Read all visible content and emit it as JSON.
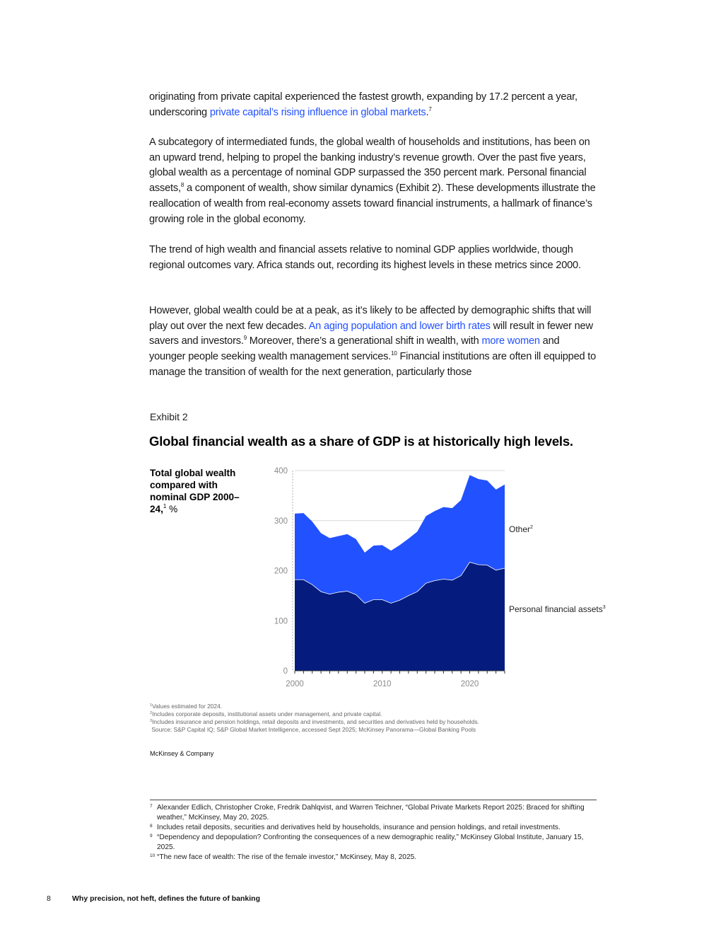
{
  "body": {
    "p1": {
      "t1": "originating from private capital experienced the fastest growth, expanding by 17.2 percent a year, underscoring ",
      "link": "private capital’s rising influence in global markets",
      "t2": ".",
      "fn": "7"
    },
    "p2": {
      "t1": "A subcategory of intermediated funds, the global wealth of households and institutions, has been on an upward trend, helping to propel the banking industry’s revenue growth. Over the past five years, global wealth as a percentage of nominal GDP surpassed the 350 percent mark. Personal financial assets,",
      "fn": "8",
      "t2": " a component of wealth, show similar dynamics (Exhibit 2). These developments illustrate the reallocation of wealth from real-economy assets toward financial instruments, a hallmark of finance’s growing role in the global economy."
    },
    "p3": "The trend of high wealth and financial assets relative to nominal GDP applies worldwide, though regional outcomes vary. Africa stands out, recording its highest levels in these metrics since 2000.",
    "p4": {
      "t1": "However, global wealth could be at a peak, as it’s likely to be affected by demographic shifts that will play out over the next few decades. ",
      "link1": "An aging population and lower birth rates",
      "t2": " will result in fewer new savers and investors.",
      "fn1": "9",
      "t3": " Moreover, there’s a generational shift in wealth, with ",
      "link2": "more women",
      "t4": " and younger people seeking wealth management services.",
      "fn2": "10",
      "t5": " Financial institutions are often ill equipped to manage the transition of wealth for the next generation, particularly those"
    }
  },
  "exhibit": {
    "label": "Exhibit 2",
    "title": "Global financial wealth as a share of GDP is at historically high levels.",
    "side_label_bold": "Total global wealth compared with nominal GDP 2000–24,",
    "side_label_fn": "1",
    "side_label_unit": " %"
  },
  "chart_data": {
    "type": "area",
    "stacked": true,
    "x": [
      2000,
      2001,
      2002,
      2003,
      2004,
      2005,
      2006,
      2007,
      2008,
      2009,
      2010,
      2011,
      2012,
      2013,
      2014,
      2015,
      2016,
      2017,
      2018,
      2019,
      2020,
      2021,
      2022,
      2023,
      2024
    ],
    "series": [
      {
        "name": "Personal financial assets",
        "fn": "3",
        "color": "#051c7e",
        "values": [
          182,
          182,
          172,
          158,
          153,
          157,
          159,
          152,
          135,
          142,
          142,
          135,
          141,
          150,
          158,
          175,
          180,
          183,
          181,
          190,
          217,
          212,
          211,
          201,
          205
        ]
      },
      {
        "name": "Other",
        "fn": "2",
        "color": "#2251ff",
        "values": [
          132,
          133,
          126,
          117,
          112,
          112,
          114,
          111,
          101,
          108,
          109,
          105,
          110,
          114,
          120,
          134,
          139,
          144,
          144,
          151,
          174,
          171,
          169,
          161,
          167
        ]
      }
    ],
    "ylim": [
      0,
      400
    ],
    "yticks": [
      0,
      100,
      200,
      300,
      400
    ],
    "xticks": [
      2000,
      2010,
      2020
    ],
    "grid": true,
    "legend": "inline-right"
  },
  "notes": {
    "n1": {
      "fn": "1",
      "text": "Values estimated for 2024."
    },
    "n2": {
      "fn": "2",
      "text": "Includes corporate deposits, institutional assets under management, and private capital."
    },
    "n3": {
      "fn": "3",
      "text": "Includes insurance and pension holdings, retail deposits and investments, and securities and derivatives held by households."
    },
    "source": "Source: S&P Capital IQ; S&P Global Market Intelligence, accessed Sept 2025; McKinsey Panorama—Global Banking Pools"
  },
  "brand": "McKinsey & Company",
  "footnotes": [
    {
      "num": "7",
      "text": "Alexander Edlich, Christopher Croke, Fredrik Dahlqvist, and Warren Teichner, “Global Private Markets Report 2025: Braced for shifting weather,” McKinsey, May 20, 2025."
    },
    {
      "num": "8",
      "text": "Includes retail deposits, securities and derivatives held by households, insurance and pension holdings, and retail investments."
    },
    {
      "num": "9",
      "text": "“Dependency and depopulation? Confronting the consequences of a new demographic reality,” McKinsey Global Institute, January 15, 2025."
    },
    {
      "num": "10",
      "text": "“The new face of wealth: The rise of the female investor,” McKinsey, May 8, 2025."
    }
  ],
  "footer": {
    "page_number": "8",
    "title": "Why precision, not heft, defines the future of banking"
  }
}
